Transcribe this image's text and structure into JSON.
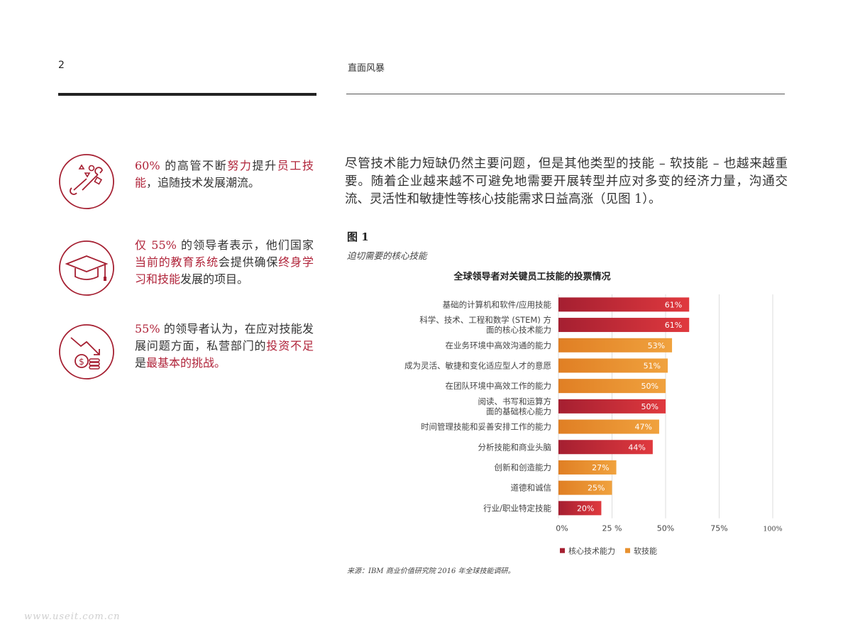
{
  "header": {
    "page_number": "2",
    "title": "直面风暴"
  },
  "stats": [
    {
      "icon": "tools-shapes-icon",
      "parts": [
        {
          "t": "60%",
          "h": true
        },
        {
          "t": " 的高管不断",
          "h": false
        },
        {
          "t": "努力",
          "h": true
        },
        {
          "t": "提升",
          "h": false
        },
        {
          "t": "员工技能",
          "h": true
        },
        {
          "t": "，追随技术发展潮流。",
          "h": false
        }
      ]
    },
    {
      "icon": "graduation-cap-icon",
      "parts": [
        {
          "t": "仅 55%",
          "h": true
        },
        {
          "t": " 的领导者表示，他们国家",
          "h": false
        },
        {
          "t": "当前的教育系统",
          "h": true
        },
        {
          "t": "会提供确保",
          "h": false
        },
        {
          "t": "终身学习和技能",
          "h": true
        },
        {
          "t": "发展的项目。",
          "h": false
        }
      ]
    },
    {
      "icon": "money-decline-icon",
      "parts": [
        {
          "t": "55%",
          "h": true
        },
        {
          "t": " 的领导者认为，在应对技能发展问题方面，私营部门的",
          "h": false
        },
        {
          "t": "投资不足",
          "h": true
        },
        {
          "t": "是",
          "h": false
        },
        {
          "t": "最基本的挑战。",
          "h": true
        }
      ]
    }
  ],
  "body_paragraph": "尽管技术能力短缺仍然主要问题，但是其他类型的技能 – 软技能 – 也越来越重要。随着企业越来越不可避免地需要开展转型并应对多变的经济力量，沟通交流、灵活性和敏捷性等核心技能需求日益高涨（见图 1）。",
  "figure": {
    "label": "图 1",
    "subtitle": "迫切需要的核心技能"
  },
  "chart_data": {
    "type": "bar",
    "orientation": "horizontal",
    "title": "全球领导者对关键员工技能的投票情况",
    "categories": [
      "基础的计算机和软件/应用技能",
      "科学、技术、工程和数学 (STEM) 方面的核心技术能力",
      "在业务环境中高效沟通的能力",
      "成为灵活、敏捷和变化适应型人才的意愿",
      "在团队环境中高效工作的能力",
      "阅读、书写和运算方面的基础核心能力",
      "时间管理技能和妥善安排工作的能力",
      "分析技能和商业头脑",
      "创新和创造能力",
      "道德和诚信",
      "行业/职业特定技能"
    ],
    "values": [
      61,
      61,
      53,
      51,
      50,
      50,
      47,
      44,
      27,
      25,
      20
    ],
    "value_labels": [
      "61%",
      "61%",
      "53%",
      "51%",
      "50%",
      "50%",
      "47%",
      "44%",
      "27%",
      "25%",
      "20%"
    ],
    "groups": [
      "core",
      "core",
      "soft",
      "soft",
      "soft",
      "core",
      "soft",
      "core",
      "soft",
      "soft",
      "core"
    ],
    "series": [
      {
        "name": "核心技术能力",
        "key": "core",
        "color": "#a51f31"
      },
      {
        "name": "软技能",
        "key": "soft",
        "color": "#e8912f"
      }
    ],
    "xlim": [
      0,
      100
    ],
    "x_ticks": [
      0,
      25,
      50,
      75,
      100
    ],
    "x_tick_labels": [
      "0%",
      "25 %",
      "50%",
      "75%",
      "100%"
    ],
    "grid": true,
    "legend_position": "bottom-left"
  },
  "source": "来源：IBM 商业价值研究院 2016 年全球技能调研。",
  "watermark": "www.useit.com.cn"
}
